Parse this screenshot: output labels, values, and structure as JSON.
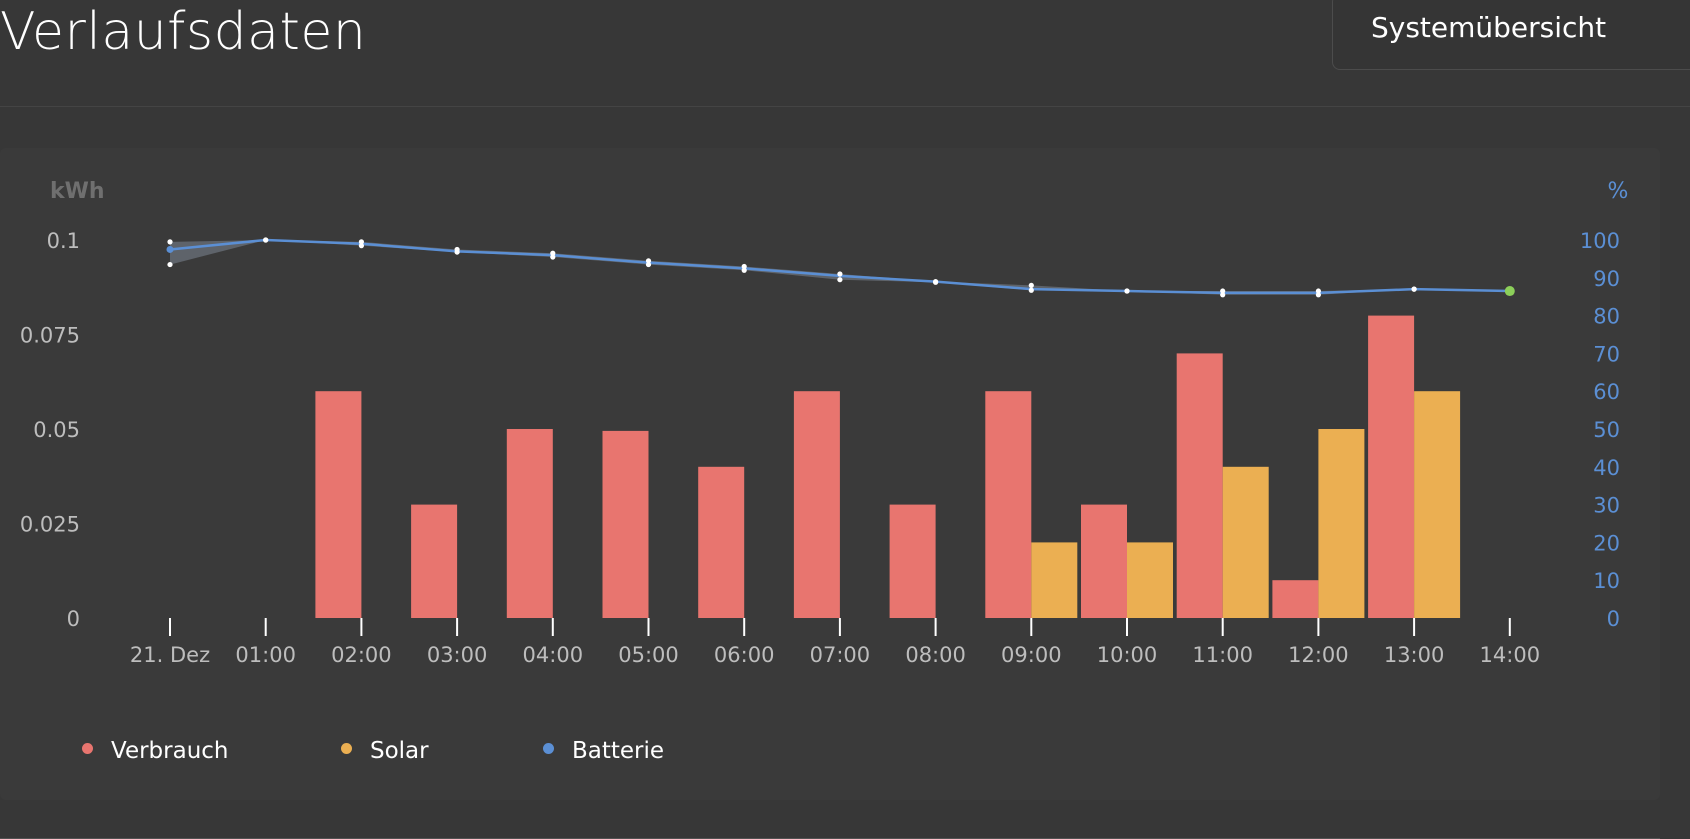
{
  "header": {
    "title": "Verlaufsdaten",
    "system_button_label": "Systemübersicht"
  },
  "legend": [
    {
      "label": "Verbrauch",
      "color": "#e8756f"
    },
    {
      "label": "Solar",
      "color": "#ebaf52"
    },
    {
      "label": "Batterie",
      "color": "#5b8fd4"
    }
  ],
  "chart_data": {
    "type": "bar",
    "categories": [
      "21. Dez",
      "01:00",
      "02:00",
      "03:00",
      "04:00",
      "05:00",
      "06:00",
      "07:00",
      "08:00",
      "09:00",
      "10:00",
      "11:00",
      "12:00",
      "13:00",
      "14:00"
    ],
    "y_left_label": "kWh",
    "y_left_ticks": [
      "0",
      "0.025",
      "0.05",
      "0.075",
      "0.1"
    ],
    "y_left_range": [
      0,
      0.1
    ],
    "y_right_label": "%",
    "y_right_ticks": [
      "0",
      "10",
      "20",
      "30",
      "40",
      "50",
      "60",
      "70",
      "80",
      "90",
      "100"
    ],
    "y_right_range": [
      0,
      100
    ],
    "series": [
      {
        "name": "Verbrauch",
        "color": "#e8756f",
        "axis": "left",
        "type": "bar",
        "values": [
          0,
          0,
          0.06,
          0.03,
          0.05,
          0.0495,
          0.04,
          0.06,
          0.03,
          0.06,
          0.03,
          0.07,
          0.01,
          0.08,
          0
        ]
      },
      {
        "name": "Solar",
        "color": "#ebaf52",
        "axis": "left",
        "type": "bar",
        "values": [
          0,
          0,
          0,
          0,
          0,
          0,
          0,
          0,
          0,
          0.02,
          0.02,
          0.04,
          0.05,
          0.06,
          0
        ]
      },
      {
        "name": "Batterie",
        "color": "#5b8fd4",
        "axis": "right",
        "type": "line",
        "values": [
          97.5,
          100,
          99,
          97,
          96,
          94,
          92.5,
          90.5,
          89,
          87,
          86.5,
          86,
          86,
          87,
          86.5
        ],
        "max": [
          99.5,
          100,
          99.5,
          97.5,
          96.5,
          94.5,
          93,
          91,
          89,
          88,
          86.5,
          86.5,
          86.5,
          87,
          86.5
        ],
        "min": [
          93.5,
          100,
          98.5,
          96.8,
          95.5,
          93.5,
          92,
          89.5,
          88.8,
          86.7,
          86.5,
          85.5,
          85.5,
          87,
          86.5
        ]
      }
    ],
    "grid": false,
    "legend_position": "bottom-left"
  }
}
